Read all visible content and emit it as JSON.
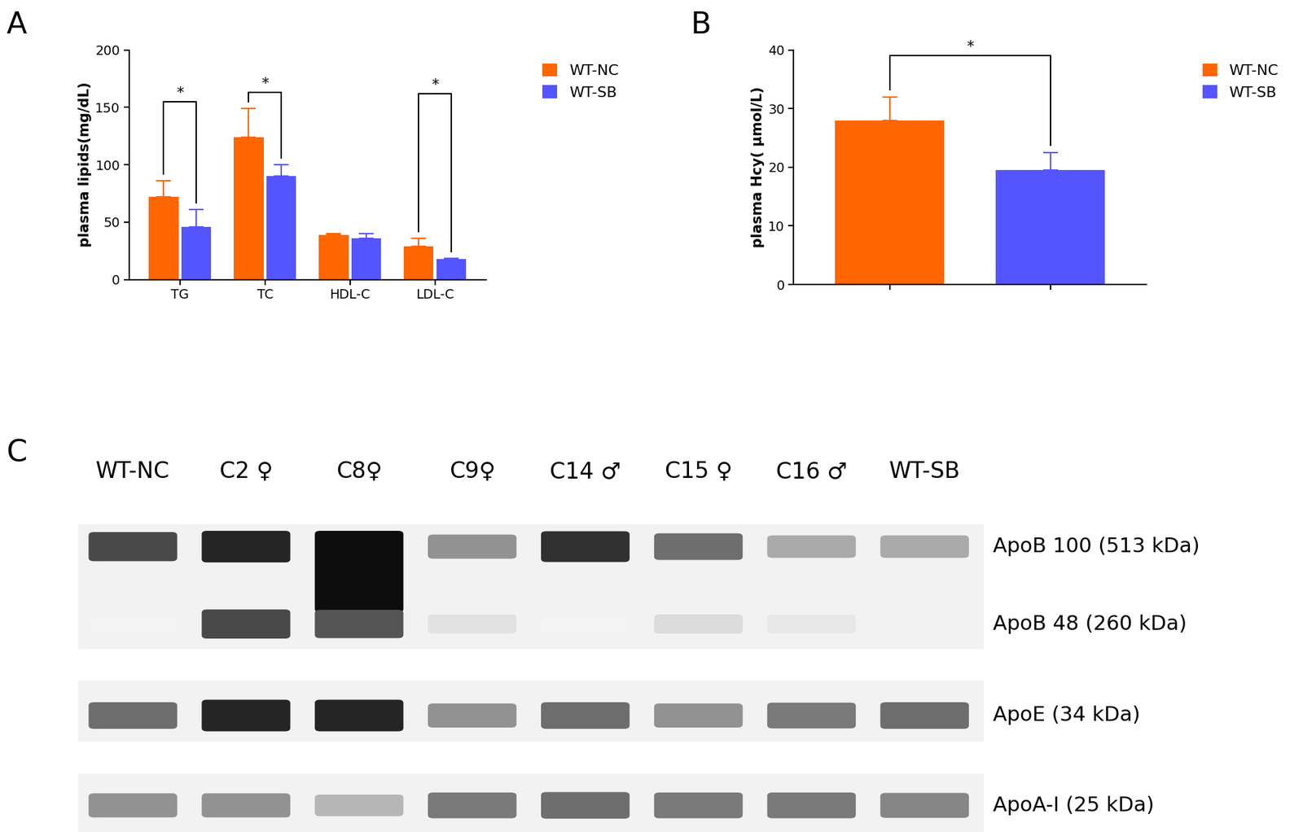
{
  "chart_data": [
    {
      "type": "bar",
      "panel_label": "A",
      "y_label": "plasma lipids(mg/dL)",
      "categories": [
        "TG",
        "TC",
        "HDL-C",
        "LDL-C"
      ],
      "series": [
        {
          "name": "WT-NC",
          "color": "#ff6600",
          "values": [
            72,
            124,
            39,
            29
          ],
          "errors": [
            14,
            25,
            1,
            7
          ]
        },
        {
          "name": "WT-SB",
          "color": "#5555ff",
          "values": [
            46,
            90,
            36,
            18
          ],
          "errors": [
            15,
            10,
            4,
            0.5
          ]
        }
      ],
      "ylim": [
        0,
        200
      ],
      "yticks": [
        0,
        50,
        100,
        150,
        200
      ],
      "legend": "upper left",
      "significance": [
        {
          "series": [
            "WT-NC",
            "WT-SB"
          ],
          "category": "TG",
          "y": 155,
          "label": "*"
        },
        {
          "series": [
            "WT-NC",
            "WT-SB"
          ],
          "category": "TC",
          "y": 163,
          "label": "*"
        },
        {
          "series": [
            "WT-NC",
            "WT-SB"
          ],
          "category": "LDL-C",
          "y": 162,
          "label": "*"
        }
      ]
    },
    {
      "type": "bar",
      "panel_label": "B",
      "y_label": "plasma Hcy( μmol/L)",
      "categories": [
        null,
        null
      ],
      "series": [
        {
          "name": "WT-NC",
          "color": "#ff6600",
          "values": [
            28,
            null
          ],
          "errors": [
            4,
            null
          ]
        },
        {
          "name": "WT-SB",
          "color": "#5555ff",
          "values": [
            null,
            19.5
          ],
          "errors": [
            null,
            3
          ]
        }
      ],
      "ylim": [
        0,
        40
      ],
      "yticks": [
        0,
        10,
        20,
        30,
        40
      ],
      "legend": "upper left",
      "significance": [
        {
          "series": [
            "WT-NC",
            "WT-SB"
          ],
          "y": 39,
          "label": "*"
        }
      ]
    }
  ],
  "blot": {
    "panel_label": "C",
    "lanes": [
      "WT-NC",
      "C2 ♀",
      "C8♀",
      "C9♀",
      "C14 ♂",
      "C15 ♀",
      "C16 ♂",
      "WT-SB"
    ],
    "bands": [
      {
        "label": "ApoB 100 (513 kDa)",
        "intensity": [
          0.75,
          0.9,
          1.0,
          0.45,
          0.85,
          0.6,
          0.35,
          0.35
        ]
      },
      {
        "label": "ApoB 48 (260 kDa)",
        "intensity": [
          0.05,
          0.75,
          0.7,
          0.12,
          0.05,
          0.15,
          0.1,
          0.0
        ]
      },
      {
        "label": "ApoE (34 kDa)",
        "intensity": [
          0.6,
          0.9,
          0.9,
          0.45,
          0.6,
          0.45,
          0.55,
          0.6
        ]
      },
      {
        "label": "ApoA-I (25 kDa)",
        "intensity": [
          0.45,
          0.45,
          0.3,
          0.55,
          0.6,
          0.55,
          0.55,
          0.5
        ]
      }
    ]
  }
}
